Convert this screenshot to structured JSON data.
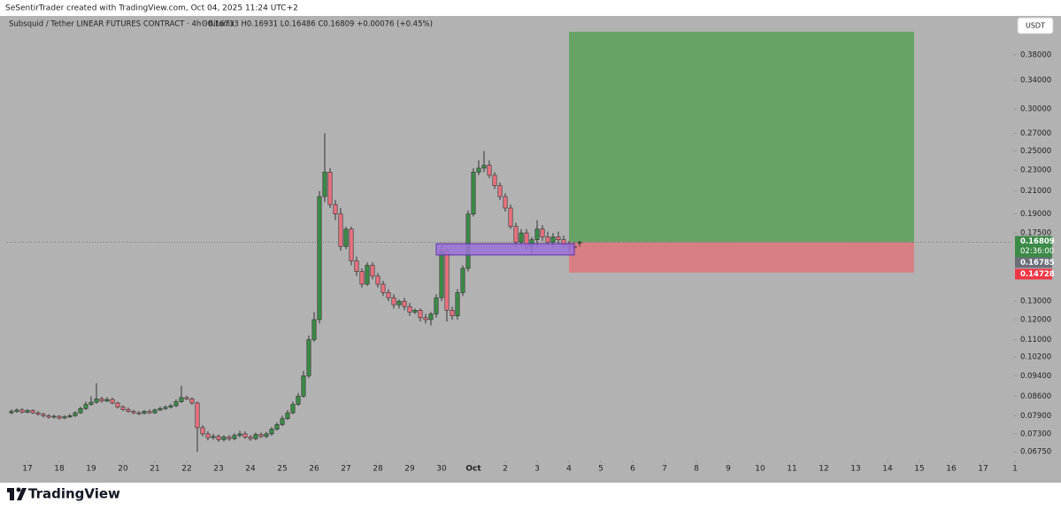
{
  "header": {
    "credit": "SeSentirTrader created with TradingView.com, Oct 04, 2025 11:24 UTC+2",
    "brand": "TradingView"
  },
  "chart_data": {
    "type": "candlestick",
    "symbol": "Subsquid / Tether LINEAR FUTURES CONTRACT · 4h · Bitunix",
    "ohlc_text": "O0.16733 H0.16931 L0.16486 C0.16809 +0.00076 (+0.45%)",
    "currency": "USDT",
    "log_scale": true,
    "grid": false,
    "up_color": "#3b8a47",
    "down_color": "#e8707e",
    "x": [
      -3,
      -2,
      -1,
      0,
      1,
      2,
      3,
      4,
      5,
      6,
      7,
      8,
      9,
      10,
      11,
      12,
      13,
      14,
      15,
      16,
      17,
      18,
      19,
      20,
      21,
      22,
      23,
      24,
      25,
      26,
      27,
      28,
      29,
      30,
      31,
      32,
      33,
      34,
      35,
      36,
      37,
      38,
      39,
      40,
      41,
      42,
      43,
      44,
      45,
      46,
      47,
      48,
      49,
      50,
      51,
      52,
      53,
      54,
      55,
      56,
      57,
      58,
      59,
      60,
      61,
      62,
      63,
      64,
      65,
      66,
      67,
      68,
      69,
      70,
      71,
      72,
      73,
      74,
      75,
      76,
      77,
      78,
      79,
      80,
      81,
      82,
      83,
      84,
      85,
      86,
      87,
      88,
      89,
      90,
      91,
      92,
      93,
      94,
      95,
      96,
      97,
      98,
      99,
      100,
      101,
      102,
      103,
      104
    ],
    "open": [
      0.08,
      0.0805,
      0.081,
      0.0802,
      0.0808,
      0.08,
      0.0795,
      0.079,
      0.0785,
      0.0788,
      0.0782,
      0.0786,
      0.079,
      0.08,
      0.0815,
      0.083,
      0.0838,
      0.085,
      0.0842,
      0.0848,
      0.0835,
      0.082,
      0.0812,
      0.0805,
      0.08,
      0.0798,
      0.0805,
      0.08,
      0.081,
      0.0815,
      0.082,
      0.0825,
      0.084,
      0.0855,
      0.085,
      0.0835,
      0.075,
      0.073,
      0.0718,
      0.0722,
      0.0712,
      0.072,
      0.0715,
      0.0725,
      0.073,
      0.072,
      0.0715,
      0.0728,
      0.0722,
      0.073,
      0.0745,
      0.076,
      0.078,
      0.08,
      0.083,
      0.086,
      0.094,
      0.11,
      0.12,
      0.205,
      0.228,
      0.198,
      0.19,
      0.165,
      0.178,
      0.155,
      0.148,
      0.14,
      0.152,
      0.145,
      0.14,
      0.135,
      0.132,
      0.128,
      0.13,
      0.127,
      0.124,
      0.125,
      0.121,
      0.12,
      0.123,
      0.132,
      0.162,
      0.125,
      0.122,
      0.135,
      0.15,
      0.19,
      0.228,
      0.232,
      0.235,
      0.225,
      0.215,
      0.205,
      0.195,
      0.18,
      0.168,
      0.175,
      0.165,
      0.17,
      0.178,
      0.172,
      0.168,
      0.172,
      0.17,
      0.166,
      0.165,
      0.16733
    ],
    "high": [
      0.0812,
      0.0815,
      0.0816,
      0.0813,
      0.0812,
      0.0806,
      0.08,
      0.0795,
      0.0794,
      0.0792,
      0.0792,
      0.0796,
      0.0806,
      0.0822,
      0.084,
      0.086,
      0.091,
      0.0858,
      0.0856,
      0.0855,
      0.084,
      0.0826,
      0.0818,
      0.081,
      0.0806,
      0.081,
      0.0812,
      0.0815,
      0.0822,
      0.0826,
      0.0832,
      0.0848,
      0.09,
      0.0862,
      0.0856,
      0.084,
      0.0758,
      0.0738,
      0.073,
      0.0728,
      0.0726,
      0.0726,
      0.0732,
      0.074,
      0.0738,
      0.0726,
      0.0734,
      0.0734,
      0.0736,
      0.0752,
      0.0768,
      0.079,
      0.081,
      0.084,
      0.0872,
      0.096,
      0.112,
      0.124,
      0.21,
      0.27,
      0.232,
      0.202,
      0.195,
      0.18,
      0.18,
      0.158,
      0.15,
      0.154,
      0.154,
      0.147,
      0.142,
      0.137,
      0.134,
      0.131,
      0.132,
      0.129,
      0.126,
      0.126,
      0.123,
      0.124,
      0.134,
      0.166,
      0.164,
      0.127,
      0.137,
      0.152,
      0.193,
      0.232,
      0.24,
      0.25,
      0.24,
      0.228,
      0.218,
      0.208,
      0.198,
      0.183,
      0.178,
      0.178,
      0.172,
      0.185,
      0.181,
      0.176,
      0.175,
      0.176,
      0.173,
      0.169,
      0.168,
      0.16931
    ],
    "low": [
      0.0795,
      0.08,
      0.0798,
      0.0798,
      0.0796,
      0.079,
      0.0784,
      0.078,
      0.078,
      0.0777,
      0.0778,
      0.0782,
      0.0786,
      0.0796,
      0.081,
      0.0825,
      0.0832,
      0.0836,
      0.0838,
      0.083,
      0.0815,
      0.0806,
      0.08,
      0.0795,
      0.0792,
      0.0794,
      0.0796,
      0.0796,
      0.0806,
      0.081,
      0.0815,
      0.082,
      0.0835,
      0.0845,
      0.0828,
      0.0675,
      0.0722,
      0.071,
      0.0712,
      0.0705,
      0.0706,
      0.0708,
      0.071,
      0.0718,
      0.0714,
      0.0708,
      0.071,
      0.0716,
      0.0716,
      0.0724,
      0.074,
      0.0755,
      0.0775,
      0.0795,
      0.0825,
      0.0855,
      0.093,
      0.109,
      0.118,
      0.2,
      0.195,
      0.185,
      0.162,
      0.163,
      0.152,
      0.145,
      0.138,
      0.139,
      0.143,
      0.138,
      0.133,
      0.13,
      0.126,
      0.126,
      0.125,
      0.122,
      0.123,
      0.119,
      0.118,
      0.117,
      0.121,
      0.13,
      0.119,
      0.12,
      0.12,
      0.133,
      0.148,
      0.188,
      0.225,
      0.228,
      0.222,
      0.212,
      0.202,
      0.192,
      0.178,
      0.164,
      0.165,
      0.162,
      0.16,
      0.164,
      0.169,
      0.166,
      0.164,
      0.167,
      0.164,
      0.16,
      0.161,
      0.16486
    ],
    "close": [
      0.0805,
      0.081,
      0.0802,
      0.0808,
      0.08,
      0.0795,
      0.079,
      0.0785,
      0.0788,
      0.0782,
      0.0786,
      0.079,
      0.08,
      0.0815,
      0.083,
      0.0838,
      0.085,
      0.0842,
      0.0848,
      0.0835,
      0.082,
      0.0812,
      0.0805,
      0.08,
      0.0798,
      0.0805,
      0.08,
      0.081,
      0.0815,
      0.082,
      0.0825,
      0.084,
      0.0855,
      0.085,
      0.0835,
      0.075,
      0.073,
      0.0718,
      0.0722,
      0.0712,
      0.072,
      0.0715,
      0.0725,
      0.073,
      0.072,
      0.0715,
      0.0728,
      0.0722,
      0.073,
      0.0745,
      0.076,
      0.078,
      0.08,
      0.083,
      0.086,
      0.094,
      0.11,
      0.12,
      0.205,
      0.228,
      0.198,
      0.19,
      0.165,
      0.178,
      0.155,
      0.148,
      0.14,
      0.152,
      0.145,
      0.14,
      0.135,
      0.132,
      0.128,
      0.13,
      0.127,
      0.124,
      0.125,
      0.121,
      0.12,
      0.123,
      0.132,
      0.162,
      0.125,
      0.122,
      0.135,
      0.15,
      0.19,
      0.228,
      0.232,
      0.235,
      0.225,
      0.215,
      0.205,
      0.195,
      0.18,
      0.168,
      0.175,
      0.165,
      0.17,
      0.178,
      0.172,
      0.168,
      0.172,
      0.17,
      0.166,
      0.165,
      0.164,
      0.16809
    ],
    "xlim": [
      -3.83,
      186.17
    ],
    "xticks": [
      {
        "value": 0,
        "label": "17"
      },
      {
        "value": 6,
        "label": "18"
      },
      {
        "value": 12,
        "label": "19"
      },
      {
        "value": 18,
        "label": "20"
      },
      {
        "value": 24,
        "label": "21"
      },
      {
        "value": 30,
        "label": "22"
      },
      {
        "value": 36,
        "label": "23"
      },
      {
        "value": 42,
        "label": "24"
      },
      {
        "value": 48,
        "label": "25"
      },
      {
        "value": 54,
        "label": "26"
      },
      {
        "value": 60,
        "label": "27"
      },
      {
        "value": 66,
        "label": "28"
      },
      {
        "value": 72,
        "label": "29"
      },
      {
        "value": 78,
        "label": "30"
      },
      {
        "value": 84,
        "label": "Oct"
      },
      {
        "value": 90,
        "label": "2"
      },
      {
        "value": 96,
        "label": "3"
      },
      {
        "value": 102,
        "label": "4"
      },
      {
        "value": 108,
        "label": "5"
      },
      {
        "value": 114,
        "label": "6"
      },
      {
        "value": 120,
        "label": "7"
      },
      {
        "value": 126,
        "label": "8"
      },
      {
        "value": 132,
        "label": "9"
      },
      {
        "value": 138,
        "label": "10"
      },
      {
        "value": 144,
        "label": "11"
      },
      {
        "value": 150,
        "label": "12"
      },
      {
        "value": 156,
        "label": "13"
      },
      {
        "value": 162,
        "label": "14"
      },
      {
        "value": 168,
        "label": "15"
      },
      {
        "value": 174,
        "label": "16"
      },
      {
        "value": 180,
        "label": "17"
      },
      {
        "value": 186,
        "label": "1"
      }
    ],
    "ylim": [
      0.065,
      0.45
    ],
    "yticks": [
      {
        "value": 0.38,
        "label": "0.38000"
      },
      {
        "value": 0.34,
        "label": "0.34000"
      },
      {
        "value": 0.3,
        "label": "0.30000"
      },
      {
        "value": 0.27,
        "label": "0.27000"
      },
      {
        "value": 0.25,
        "label": "0.25000"
      },
      {
        "value": 0.23,
        "label": "0.23000"
      },
      {
        "value": 0.21,
        "label": "0.21000"
      },
      {
        "value": 0.19,
        "label": "0.19000"
      },
      {
        "value": 0.175,
        "label": "0.17500"
      },
      {
        "value": 0.13,
        "label": "0.13000"
      },
      {
        "value": 0.12,
        "label": "0.12000"
      },
      {
        "value": 0.11,
        "label": "0.11000"
      },
      {
        "value": 0.102,
        "label": "0.10200"
      },
      {
        "value": 0.094,
        "label": "0.09400"
      },
      {
        "value": 0.086,
        "label": "0.08600"
      },
      {
        "value": 0.079,
        "label": "0.07900"
      },
      {
        "value": 0.073,
        "label": "0.07300"
      },
      {
        "value": 0.0675,
        "label": "0.06750"
      }
    ],
    "last_price": 0.16809,
    "countdown": "02:36:00",
    "mark_price": 0.16785,
    "position": {
      "x": [
        102,
        167
      ],
      "entry": 0.16809,
      "stop": 0.14728,
      "target": 0.42
    },
    "zone": {
      "x": [
        77,
        103
      ],
      "low": 0.159,
      "high": 0.167
    }
  }
}
